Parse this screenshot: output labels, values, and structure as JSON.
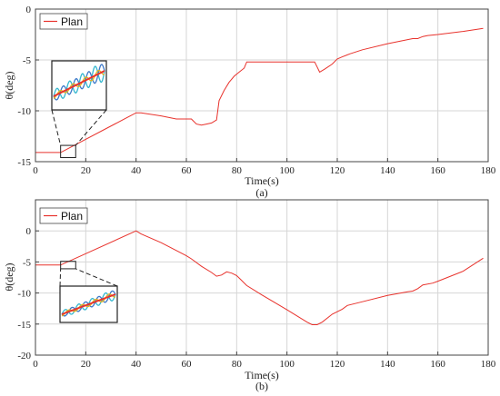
{
  "colors": {
    "plan": "#e8322c",
    "osc_blue": "#3c78c8",
    "osc_cyan": "#35b7cf",
    "osc_yellow": "#e8b21d"
  },
  "chart_data": [
    {
      "type": "line",
      "panel_label": "(a)",
      "xlabel": "Time(s)",
      "ylabel": "θ(deg)",
      "xlim": [
        0,
        180
      ],
      "ylim": [
        -15,
        0
      ],
      "xticks": [
        0,
        20,
        40,
        60,
        80,
        100,
        120,
        140,
        160,
        180
      ],
      "yticks": [
        0,
        -5,
        -10,
        -15
      ],
      "grid": true,
      "legend_position": "top-left",
      "series": [
        {
          "name": "Plan",
          "color": "#e8322c",
          "x": [
            0,
            8,
            10,
            40,
            42,
            50,
            56,
            62,
            64,
            66,
            68,
            70,
            72,
            73,
            75,
            77,
            79,
            81,
            83,
            84,
            90,
            100,
            110,
            111,
            112,
            113,
            115,
            118,
            120,
            122,
            125,
            130,
            140,
            150,
            152,
            154,
            156,
            160,
            170,
            178
          ],
          "y": [
            -14.1,
            -14.1,
            -14.1,
            -10.2,
            -10.2,
            -10.5,
            -10.8,
            -10.8,
            -11.3,
            -11.4,
            -11.3,
            -11.2,
            -10.9,
            -9.0,
            -8.0,
            -7.2,
            -6.6,
            -6.2,
            -5.8,
            -5.2,
            -5.2,
            -5.2,
            -5.2,
            -5.2,
            -5.7,
            -6.2,
            -5.9,
            -5.4,
            -4.9,
            -4.7,
            -4.4,
            -4.0,
            -3.4,
            -2.9,
            -2.9,
            -2.7,
            -2.6,
            -2.5,
            -2.2,
            -1.9
          ]
        }
      ],
      "inset": {
        "zoom_box": {
          "x": [
            10,
            16
          ],
          "y": [
            -14.6,
            -13.4
          ]
        }
      }
    },
    {
      "type": "line",
      "panel_label": "(b)",
      "xlabel": "Time(s)",
      "ylabel": "θ(deg)",
      "xlim": [
        0,
        180
      ],
      "ylim": [
        -20,
        5
      ],
      "xticks": [
        0,
        20,
        40,
        60,
        80,
        100,
        120,
        140,
        160,
        180
      ],
      "yticks": [
        0,
        -5,
        -10,
        -15,
        -20
      ],
      "grid": true,
      "legend_position": "top-left",
      "series": [
        {
          "name": "Plan",
          "color": "#e8322c",
          "x": [
            0,
            10,
            40,
            42,
            50,
            60,
            62,
            66,
            70,
            72,
            74,
            76,
            78,
            80,
            82,
            84,
            90,
            100,
            108,
            110,
            112,
            114,
            118,
            122,
            124,
            130,
            140,
            148,
            150,
            152,
            154,
            158,
            160,
            170,
            178
          ],
          "y": [
            -5.5,
            -5.5,
            0,
            -0.5,
            -1.9,
            -4.0,
            -4.5,
            -5.7,
            -6.7,
            -7.3,
            -7.1,
            -6.6,
            -6.8,
            -7.2,
            -8.0,
            -8.8,
            -10.3,
            -12.7,
            -14.7,
            -15.1,
            -15.1,
            -14.7,
            -13.4,
            -12.6,
            -12.0,
            -11.4,
            -10.4,
            -9.8,
            -9.7,
            -9.3,
            -8.7,
            -8.4,
            -8.1,
            -6.5,
            -4.4
          ]
        }
      ],
      "inset": {
        "zoom_box": {
          "x": [
            10,
            16
          ],
          "y": [
            -6.1,
            -4.9
          ]
        }
      }
    }
  ]
}
